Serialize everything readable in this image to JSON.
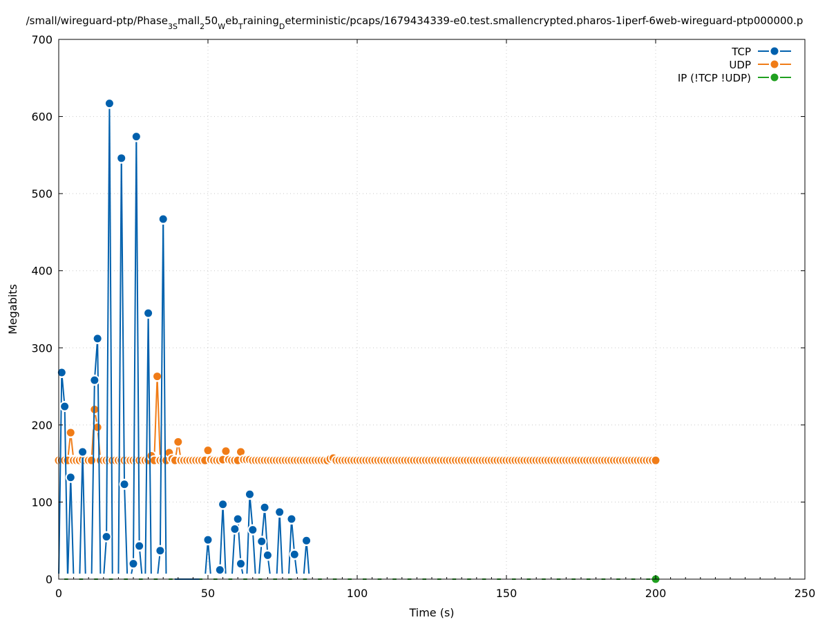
{
  "chart_data": {
    "type": "line",
    "title": "/small/wireguard-ptp/Phase_3_Small_250_Web_Training_Deterministic/pcaps/1679434339-e0.test.smallencrypted.pharos-1iperf-6web-wireguard-ptp000000.p",
    "title_parts": [
      {
        "t": "/small/wireguard-ptp/Phase",
        "sub": false
      },
      {
        "t": "3S",
        "sub": true
      },
      {
        "t": "mall",
        "sub": false
      },
      {
        "t": "2",
        "sub": true
      },
      {
        "t": "50",
        "sub": false
      },
      {
        "t": "W",
        "sub": true
      },
      {
        "t": "eb",
        "sub": false
      },
      {
        "t": "T",
        "sub": true
      },
      {
        "t": "raining",
        "sub": false
      },
      {
        "t": "D",
        "sub": true
      },
      {
        "t": "eterministic/pcaps/1679434339-e0.test.smallencrypted.pharos-1iperf-6web-wireguard-ptp000000.p",
        "sub": false
      }
    ],
    "xlabel": "Time (s)",
    "ylabel": "Megabits",
    "xlim": [
      0,
      250
    ],
    "ylim": [
      0,
      700
    ],
    "xticks": [
      0,
      50,
      100,
      150,
      200,
      250
    ],
    "yticks": [
      0,
      100,
      200,
      300,
      400,
      500,
      600,
      700
    ],
    "grid": true,
    "legend_position": "top-right",
    "series": [
      {
        "name": "TCP",
        "color": "#0060ad",
        "points": [
          [
            0,
            0
          ],
          [
            1,
            268
          ],
          [
            2,
            224
          ],
          [
            3,
            0
          ],
          [
            4,
            132
          ],
          [
            5,
            0
          ],
          [
            6,
            0
          ],
          [
            7,
            0
          ],
          [
            8,
            165
          ],
          [
            9,
            0
          ],
          [
            10,
            0
          ],
          [
            11,
            0
          ],
          [
            12,
            258
          ],
          [
            13,
            312
          ],
          [
            14,
            0
          ],
          [
            15,
            0
          ],
          [
            16,
            55
          ],
          [
            17,
            617
          ],
          [
            18,
            0
          ],
          [
            19,
            0
          ],
          [
            20,
            0
          ],
          [
            21,
            546
          ],
          [
            22,
            123
          ],
          [
            23,
            0
          ],
          [
            24,
            0
          ],
          [
            25,
            20
          ],
          [
            26,
            574
          ],
          [
            27,
            43
          ],
          [
            28,
            0
          ],
          [
            29,
            0
          ],
          [
            30,
            345
          ],
          [
            31,
            0
          ],
          [
            32,
            0
          ],
          [
            33,
            0
          ],
          [
            34,
            37
          ],
          [
            35,
            467
          ],
          [
            36,
            0
          ],
          [
            37,
            0
          ],
          [
            49,
            0
          ],
          [
            50,
            51
          ],
          [
            51,
            0
          ],
          [
            52,
            0
          ],
          [
            53,
            0
          ],
          [
            54,
            12
          ],
          [
            55,
            97
          ],
          [
            56,
            0
          ],
          [
            57,
            0
          ],
          [
            58,
            0
          ],
          [
            59,
            65
          ],
          [
            60,
            78
          ],
          [
            61,
            20
          ],
          [
            62,
            0
          ],
          [
            63,
            0
          ],
          [
            64,
            110
          ],
          [
            65,
            64
          ],
          [
            66,
            0
          ],
          [
            67,
            0
          ],
          [
            68,
            49
          ],
          [
            69,
            93
          ],
          [
            70,
            31
          ],
          [
            71,
            0
          ],
          [
            72,
            0
          ],
          [
            73,
            0
          ],
          [
            74,
            87
          ],
          [
            75,
            0
          ],
          [
            76,
            0
          ],
          [
            77,
            0
          ],
          [
            78,
            78
          ],
          [
            79,
            32
          ],
          [
            80,
            0
          ],
          [
            81,
            0
          ],
          [
            82,
            0
          ],
          [
            83,
            50
          ],
          [
            84,
            0
          ]
        ]
      },
      {
        "name": "UDP",
        "color": "#f07c17",
        "points": [
          [
            0,
            154
          ],
          [
            1,
            154
          ],
          [
            2,
            154
          ],
          [
            3,
            154
          ],
          [
            4,
            190
          ],
          [
            5,
            154
          ],
          [
            6,
            154
          ],
          [
            7,
            154
          ],
          [
            8,
            155
          ],
          [
            9,
            154
          ],
          [
            10,
            154
          ],
          [
            11,
            154
          ],
          [
            12,
            220
          ],
          [
            13,
            197
          ],
          [
            14,
            154
          ],
          [
            15,
            154
          ],
          [
            16,
            154
          ],
          [
            17,
            154
          ],
          [
            18,
            154
          ],
          [
            19,
            154
          ],
          [
            20,
            154
          ],
          [
            21,
            154
          ],
          [
            22,
            154
          ],
          [
            23,
            154
          ],
          [
            24,
            154
          ],
          [
            25,
            154
          ],
          [
            26,
            154
          ],
          [
            27,
            154
          ],
          [
            28,
            154
          ],
          [
            29,
            154
          ],
          [
            30,
            154
          ],
          [
            31,
            160
          ],
          [
            32,
            154
          ],
          [
            33,
            263
          ],
          [
            34,
            154
          ],
          [
            35,
            154
          ],
          [
            36,
            154
          ],
          [
            37,
            164
          ],
          [
            38,
            156
          ],
          [
            39,
            154
          ],
          [
            40,
            178
          ],
          [
            41,
            154
          ],
          [
            42,
            154
          ],
          [
            43,
            154
          ],
          [
            44,
            154
          ],
          [
            45,
            154
          ],
          [
            46,
            154
          ],
          [
            47,
            154
          ],
          [
            48,
            154
          ],
          [
            49,
            154
          ],
          [
            50,
            167
          ],
          [
            51,
            155
          ],
          [
            52,
            154
          ],
          [
            53,
            154
          ],
          [
            54,
            154
          ],
          [
            55,
            155
          ],
          [
            56,
            166
          ],
          [
            57,
            155
          ],
          [
            58,
            154
          ],
          [
            59,
            154
          ],
          [
            60,
            154
          ],
          [
            61,
            165
          ],
          [
            62,
            155
          ],
          [
            63,
            155
          ],
          [
            64,
            155
          ],
          [
            65,
            154
          ],
          [
            66,
            154
          ],
          [
            67,
            154
          ],
          [
            68,
            154
          ],
          [
            69,
            154
          ],
          [
            70,
            154
          ],
          [
            71,
            154
          ],
          [
            72,
            154
          ],
          [
            73,
            154
          ],
          [
            74,
            154
          ],
          [
            75,
            154
          ],
          [
            76,
            154
          ],
          [
            77,
            154
          ],
          [
            78,
            154
          ],
          [
            79,
            154
          ],
          [
            80,
            154
          ],
          [
            81,
            154
          ],
          [
            82,
            154
          ],
          [
            83,
            154
          ],
          [
            84,
            154
          ],
          [
            85,
            154
          ],
          [
            86,
            154
          ],
          [
            87,
            154
          ],
          [
            88,
            154
          ],
          [
            89,
            154
          ],
          [
            90,
            154
          ],
          [
            91,
            156
          ],
          [
            92,
            157
          ],
          [
            93,
            154
          ],
          [
            94,
            154
          ],
          [
            95,
            154
          ],
          [
            96,
            154
          ],
          [
            97,
            154
          ],
          [
            98,
            154
          ],
          [
            99,
            154
          ],
          [
            100,
            154
          ],
          [
            101,
            154
          ],
          [
            102,
            154
          ],
          [
            103,
            154
          ],
          [
            104,
            154
          ],
          [
            105,
            154
          ],
          [
            106,
            154
          ],
          [
            107,
            154
          ],
          [
            108,
            154
          ],
          [
            109,
            154
          ],
          [
            110,
            154
          ],
          [
            111,
            154
          ],
          [
            112,
            154
          ],
          [
            113,
            154
          ],
          [
            114,
            154
          ],
          [
            115,
            154
          ],
          [
            116,
            154
          ],
          [
            117,
            154
          ],
          [
            118,
            154
          ],
          [
            119,
            154
          ],
          [
            120,
            154
          ],
          [
            121,
            154
          ],
          [
            122,
            154
          ],
          [
            123,
            154
          ],
          [
            124,
            154
          ],
          [
            125,
            154
          ],
          [
            126,
            154
          ],
          [
            127,
            154
          ],
          [
            128,
            154
          ],
          [
            129,
            154
          ],
          [
            130,
            154
          ],
          [
            131,
            154
          ],
          [
            132,
            154
          ],
          [
            133,
            154
          ],
          [
            134,
            154
          ],
          [
            135,
            154
          ],
          [
            136,
            154
          ],
          [
            137,
            154
          ],
          [
            138,
            154
          ],
          [
            139,
            154
          ],
          [
            140,
            154
          ],
          [
            141,
            154
          ],
          [
            142,
            154
          ],
          [
            143,
            154
          ],
          [
            144,
            154
          ],
          [
            145,
            154
          ],
          [
            146,
            154
          ],
          [
            147,
            154
          ],
          [
            148,
            154
          ],
          [
            149,
            154
          ],
          [
            150,
            154
          ],
          [
            151,
            154
          ],
          [
            152,
            154
          ],
          [
            153,
            154
          ],
          [
            154,
            154
          ],
          [
            155,
            154
          ],
          [
            156,
            154
          ],
          [
            157,
            154
          ],
          [
            158,
            154
          ],
          [
            159,
            154
          ],
          [
            160,
            154
          ],
          [
            161,
            154
          ],
          [
            162,
            154
          ],
          [
            163,
            154
          ],
          [
            164,
            154
          ],
          [
            165,
            154
          ],
          [
            166,
            154
          ],
          [
            167,
            154
          ],
          [
            168,
            154
          ],
          [
            169,
            154
          ],
          [
            170,
            154
          ],
          [
            171,
            154
          ],
          [
            172,
            154
          ],
          [
            173,
            154
          ],
          [
            174,
            154
          ],
          [
            175,
            154
          ],
          [
            176,
            154
          ],
          [
            177,
            154
          ],
          [
            178,
            154
          ],
          [
            179,
            154
          ],
          [
            180,
            154
          ],
          [
            181,
            154
          ],
          [
            182,
            154
          ],
          [
            183,
            154
          ],
          [
            184,
            154
          ],
          [
            185,
            154
          ],
          [
            186,
            154
          ],
          [
            187,
            154
          ],
          [
            188,
            154
          ],
          [
            189,
            154
          ],
          [
            190,
            154
          ],
          [
            191,
            154
          ],
          [
            192,
            154
          ],
          [
            193,
            154
          ],
          [
            194,
            154
          ],
          [
            195,
            154
          ],
          [
            196,
            154
          ],
          [
            197,
            154
          ],
          [
            198,
            154
          ],
          [
            199,
            154
          ],
          [
            200,
            154
          ]
        ]
      },
      {
        "name": "IP (!TCP  !UDP)",
        "color": "#20a020",
        "points": [
          [
            0,
            0
          ],
          [
            5,
            0
          ],
          [
            10,
            0
          ],
          [
            15,
            0
          ],
          [
            20,
            0
          ],
          [
            25,
            0
          ],
          [
            30,
            0
          ],
          [
            35,
            0
          ],
          [
            40,
            0
          ],
          [
            45,
            0
          ],
          [
            50,
            0
          ],
          [
            55,
            0
          ],
          [
            60,
            0
          ],
          [
            65,
            0
          ],
          [
            70,
            0
          ],
          [
            75,
            0
          ],
          [
            80,
            0
          ],
          [
            85,
            0
          ],
          [
            90,
            0
          ],
          [
            95,
            0
          ],
          [
            100,
            0
          ],
          [
            105,
            0
          ],
          [
            110,
            0
          ],
          [
            115,
            0
          ],
          [
            120,
            0
          ],
          [
            125,
            0
          ],
          [
            130,
            0
          ],
          [
            135,
            0
          ],
          [
            140,
            0
          ],
          [
            145,
            0
          ],
          [
            150,
            0
          ],
          [
            155,
            0
          ],
          [
            160,
            0
          ],
          [
            165,
            0
          ],
          [
            170,
            0
          ],
          [
            175,
            0
          ],
          [
            180,
            0
          ],
          [
            185,
            0
          ],
          [
            190,
            0
          ],
          [
            195,
            0
          ],
          [
            200,
            0
          ]
        ]
      }
    ]
  }
}
